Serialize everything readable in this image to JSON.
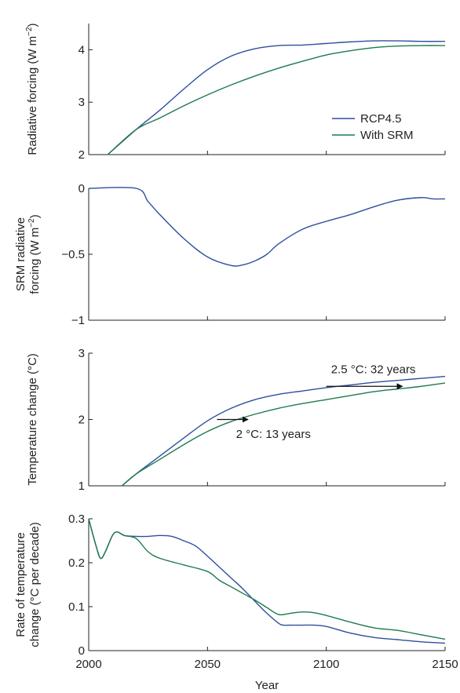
{
  "figure": {
    "x_axis_label": "Year",
    "x_ticks": [
      2000,
      2050,
      2100,
      2150
    ],
    "xlim": [
      2000,
      2150
    ]
  },
  "legend": {
    "items": [
      {
        "name": "RCP4.5",
        "color": "#2e4f9e"
      },
      {
        "name": "With SRM",
        "color": "#1f7a4e"
      }
    ]
  },
  "chart_data": [
    {
      "type": "line",
      "ylabel_lines": [
        "Radiative forcing (W m",
        "−2",
        ")"
      ],
      "ylim": [
        2,
        4.5
      ],
      "y_ticks": [
        2,
        3,
        4
      ],
      "y_tick_labels": [
        "2",
        "3",
        "4"
      ],
      "xlim": [
        2000,
        2150
      ],
      "series": [
        {
          "name": "RCP4.5",
          "x": [
            2008,
            2020,
            2030,
            2040,
            2050,
            2060,
            2070,
            2080,
            2090,
            2100,
            2110,
            2120,
            2130,
            2140,
            2150
          ],
          "y": [
            2.0,
            2.48,
            2.85,
            3.25,
            3.62,
            3.88,
            4.02,
            4.08,
            4.09,
            4.12,
            4.15,
            4.17,
            4.17,
            4.16,
            4.16
          ]
        },
        {
          "name": "With SRM",
          "x": [
            2008,
            2020,
            2030,
            2040,
            2050,
            2060,
            2070,
            2080,
            2090,
            2100,
            2110,
            2120,
            2130,
            2140,
            2150
          ],
          "y": [
            2.0,
            2.48,
            2.7,
            2.93,
            3.14,
            3.33,
            3.5,
            3.65,
            3.78,
            3.9,
            3.98,
            4.04,
            4.07,
            4.08,
            4.08
          ]
        }
      ]
    },
    {
      "type": "line",
      "ylabel_lines": [
        "SRM radiative",
        "forcing (W m",
        "−2",
        ")"
      ],
      "ylim": [
        -1,
        0
      ],
      "y_ticks": [
        0,
        -0.5,
        -1
      ],
      "y_tick_labels": [
        "0",
        "−0.5",
        "−1"
      ],
      "xlim": [
        2000,
        2150
      ],
      "series": [
        {
          "name": "RCP4.5",
          "x": [
            2000,
            2020,
            2025,
            2030,
            2040,
            2050,
            2060,
            2065,
            2070,
            2075,
            2080,
            2090,
            2100,
            2110,
            2120,
            2130,
            2140,
            2145,
            2150
          ],
          "y": [
            0,
            0,
            -0.1,
            -0.2,
            -0.38,
            -0.52,
            -0.585,
            -0.58,
            -0.55,
            -0.5,
            -0.42,
            -0.31,
            -0.25,
            -0.2,
            -0.14,
            -0.09,
            -0.07,
            -0.08,
            -0.08
          ]
        }
      ]
    },
    {
      "type": "line",
      "ylabel_lines": [
        "Temperature change (°C)"
      ],
      "ylim": [
        1,
        3
      ],
      "y_ticks": [
        1,
        2,
        3
      ],
      "y_tick_labels": [
        "1",
        "2",
        "3"
      ],
      "xlim": [
        2000,
        2150
      ],
      "series": [
        {
          "name": "RCP4.5",
          "x": [
            2014,
            2020,
            2030,
            2040,
            2050,
            2060,
            2070,
            2080,
            2090,
            2100,
            2110,
            2120,
            2130,
            2140,
            2150
          ],
          "y": [
            1.0,
            1.18,
            1.45,
            1.72,
            1.98,
            2.17,
            2.3,
            2.38,
            2.43,
            2.48,
            2.52,
            2.56,
            2.59,
            2.62,
            2.65
          ]
        },
        {
          "name": "With SRM",
          "x": [
            2014,
            2020,
            2030,
            2040,
            2050,
            2060,
            2070,
            2080,
            2090,
            2100,
            2110,
            2120,
            2130,
            2140,
            2150
          ],
          "y": [
            1.0,
            1.18,
            1.4,
            1.62,
            1.82,
            1.97,
            2.08,
            2.17,
            2.24,
            2.3,
            2.36,
            2.42,
            2.46,
            2.5,
            2.55
          ]
        }
      ],
      "annotations": [
        {
          "text": "2.5 °C: 32 years",
          "x": 2102,
          "y": 2.7,
          "arrow_from": [
            2100,
            2.5
          ],
          "arrow_to": [
            2132,
            2.5
          ]
        },
        {
          "text": "2 °C: 13 years",
          "x": 2062,
          "y": 1.72,
          "arrow_from": [
            2054,
            2.0
          ],
          "arrow_to": [
            2067,
            2.0
          ]
        }
      ]
    },
    {
      "type": "line",
      "ylabel_lines": [
        "Rate of temperature",
        "change (°C per decade)"
      ],
      "ylim": [
        0,
        0.3
      ],
      "y_ticks": [
        0,
        0.1,
        0.2,
        0.3
      ],
      "y_tick_labels": [
        "0",
        "0.1",
        "0.2",
        "0.3"
      ],
      "xlim": [
        2000,
        2150
      ],
      "series": [
        {
          "name": "RCP4.5",
          "x": [
            2000,
            2003,
            2005,
            2007,
            2010,
            2012,
            2015,
            2020,
            2025,
            2030,
            2035,
            2040,
            2045,
            2050,
            2055,
            2060,
            2065,
            2070,
            2075,
            2080,
            2082,
            2085,
            2090,
            2095,
            2100,
            2110,
            2120,
            2130,
            2140,
            2150
          ],
          "y": [
            0.3,
            0.24,
            0.21,
            0.225,
            0.262,
            0.27,
            0.262,
            0.26,
            0.26,
            0.262,
            0.26,
            0.25,
            0.238,
            0.215,
            0.19,
            0.165,
            0.14,
            0.112,
            0.085,
            0.062,
            0.058,
            0.058,
            0.058,
            0.058,
            0.055,
            0.04,
            0.03,
            0.025,
            0.02,
            0.017
          ]
        },
        {
          "name": "With SRM",
          "x": [
            2000,
            2003,
            2005,
            2007,
            2010,
            2012,
            2015,
            2020,
            2025,
            2030,
            2040,
            2050,
            2055,
            2060,
            2065,
            2070,
            2075,
            2080,
            2085,
            2090,
            2095,
            2100,
            2110,
            2120,
            2130,
            2140,
            2150
          ],
          "y": [
            0.3,
            0.24,
            0.21,
            0.225,
            0.262,
            0.27,
            0.262,
            0.255,
            0.225,
            0.21,
            0.195,
            0.18,
            0.16,
            0.145,
            0.13,
            0.115,
            0.098,
            0.082,
            0.085,
            0.088,
            0.086,
            0.08,
            0.065,
            0.052,
            0.046,
            0.036,
            0.026
          ]
        }
      ]
    }
  ]
}
